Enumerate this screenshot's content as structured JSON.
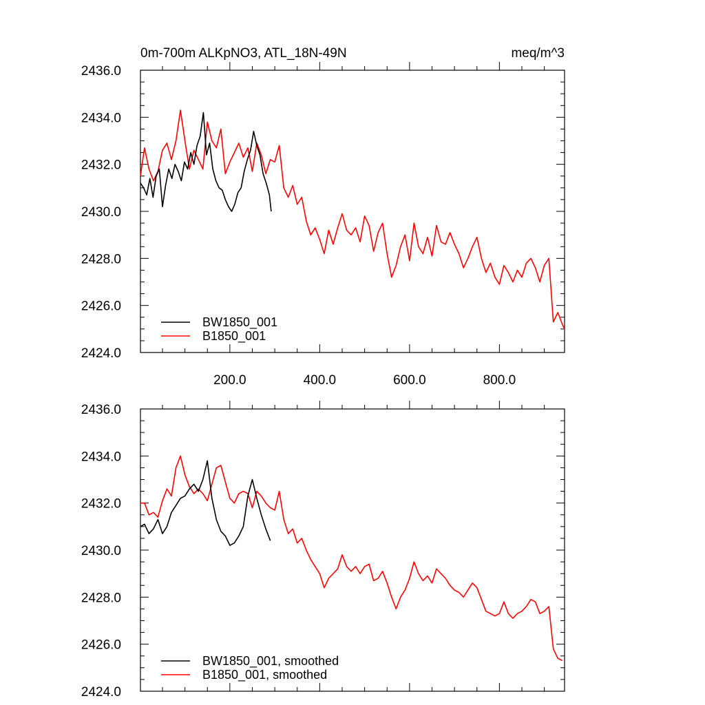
{
  "figure": {
    "title_left": "0m-700m ALKpNO3, ATL_18N-49N",
    "title_right": "meq/m^3"
  },
  "chart_data": [
    {
      "type": "line",
      "title": "0m-700m ALKpNO3, ATL_18N-49N",
      "units": "meq/m^3",
      "xlabel": "",
      "ylabel": "",
      "xlim": [
        1,
        945
      ],
      "ylim": [
        2424.0,
        2436.0
      ],
      "yticks": [
        2424.0,
        2426.0,
        2428.0,
        2430.0,
        2432.0,
        2434.0,
        2436.0
      ],
      "ytick_labels": [
        "2424.0",
        "2426.0",
        "2428.0",
        "2430.0",
        "2432.0",
        "2434.0",
        "2436.0"
      ],
      "xticks": [
        200,
        400,
        600,
        800
      ],
      "xtick_labels": [
        "200.0",
        "400.0",
        "600.0",
        "800.0"
      ],
      "grid": false,
      "legend_position": "bottom-left",
      "series": [
        {
          "name": "BW1850_001",
          "color": "#000000",
          "x": [
            1,
            8,
            15,
            22,
            29,
            36,
            43,
            50,
            57,
            64,
            71,
            78,
            85,
            92,
            99,
            106,
            113,
            120,
            127,
            134,
            141,
            148,
            155,
            162,
            169,
            176,
            183,
            190,
            197,
            204,
            211,
            218,
            225,
            232,
            239,
            246,
            253,
            260,
            267,
            274,
            281,
            288,
            292
          ],
          "y": [
            2431.2,
            2431.0,
            2430.7,
            2431.4,
            2430.6,
            2431.5,
            2431.8,
            2430.2,
            2431.1,
            2431.8,
            2431.4,
            2432.0,
            2431.7,
            2431.3,
            2432.1,
            2431.8,
            2432.5,
            2432.0,
            2432.8,
            2433.2,
            2434.2,
            2432.4,
            2432.9,
            2431.8,
            2431.3,
            2431.0,
            2430.9,
            2430.5,
            2430.2,
            2430.0,
            2430.3,
            2430.8,
            2431.0,
            2431.7,
            2432.2,
            2432.6,
            2433.4,
            2432.8,
            2432.4,
            2431.6,
            2431.2,
            2430.7,
            2430.0
          ]
        },
        {
          "name": "B1850_001",
          "color": "#ff0000",
          "x": [
            1,
            10,
            20,
            30,
            40,
            50,
            60,
            70,
            80,
            90,
            100,
            110,
            120,
            130,
            140,
            150,
            160,
            170,
            180,
            190,
            200,
            210,
            220,
            230,
            240,
            250,
            260,
            270,
            280,
            290,
            300,
            310,
            320,
            330,
            340,
            350,
            360,
            370,
            380,
            390,
            400,
            410,
            420,
            430,
            440,
            450,
            460,
            470,
            480,
            490,
            500,
            510,
            520,
            530,
            540,
            550,
            560,
            570,
            580,
            590,
            600,
            610,
            620,
            630,
            640,
            650,
            660,
            670,
            680,
            690,
            700,
            710,
            720,
            730,
            740,
            750,
            760,
            770,
            780,
            790,
            800,
            810,
            820,
            830,
            840,
            850,
            860,
            870,
            880,
            890,
            900,
            910,
            920,
            930,
            940,
            945
          ],
          "y": [
            2431.5,
            2432.7,
            2431.8,
            2431.3,
            2431.7,
            2432.6,
            2432.9,
            2432.2,
            2433.0,
            2434.3,
            2433.0,
            2431.8,
            2432.6,
            2432.2,
            2431.8,
            2433.8,
            2433.0,
            2432.7,
            2433.5,
            2431.6,
            2432.1,
            2432.5,
            2432.9,
            2432.3,
            2432.7,
            2431.7,
            2432.9,
            2432.4,
            2431.6,
            2432.2,
            2432.1,
            2432.8,
            2431.0,
            2430.6,
            2431.1,
            2430.3,
            2430.6,
            2429.6,
            2429.0,
            2429.3,
            2428.8,
            2428.2,
            2429.2,
            2428.6,
            2429.3,
            2429.9,
            2429.2,
            2429.0,
            2429.3,
            2428.7,
            2429.8,
            2429.4,
            2428.3,
            2429.1,
            2429.5,
            2428.2,
            2427.2,
            2427.7,
            2428.5,
            2429.0,
            2427.9,
            2429.5,
            2428.5,
            2428.2,
            2428.9,
            2428.1,
            2429.4,
            2428.7,
            2428.6,
            2429.1,
            2428.6,
            2428.2,
            2427.6,
            2428.0,
            2428.5,
            2428.9,
            2428.0,
            2427.4,
            2427.8,
            2427.2,
            2426.9,
            2427.7,
            2427.4,
            2427.0,
            2427.5,
            2427.2,
            2427.8,
            2428.0,
            2427.6,
            2427.0,
            2427.7,
            2428.0,
            2425.3,
            2425.7,
            2425.2,
            2425.0
          ]
        }
      ]
    },
    {
      "type": "line",
      "title": "",
      "xlabel": "",
      "ylabel": "",
      "xlim": [
        1,
        945
      ],
      "ylim": [
        2424.0,
        2436.0
      ],
      "yticks": [
        2424.0,
        2426.0,
        2428.0,
        2430.0,
        2432.0,
        2434.0,
        2436.0
      ],
      "ytick_labels": [
        "2424.0",
        "2426.0",
        "2428.0",
        "2430.0",
        "2432.0",
        "2434.0",
        "2436.0"
      ],
      "xticks": [
        200,
        400,
        600,
        800
      ],
      "xtick_labels": [],
      "grid": false,
      "legend_position": "bottom-left",
      "series": [
        {
          "name": "BW1850_001, smoothed",
          "color": "#000000",
          "x": [
            1,
            10,
            20,
            30,
            40,
            50,
            60,
            70,
            80,
            90,
            100,
            110,
            120,
            130,
            140,
            150,
            160,
            170,
            180,
            190,
            200,
            210,
            220,
            230,
            240,
            250,
            260,
            270,
            280,
            290
          ],
          "y": [
            2431.0,
            2431.1,
            2430.7,
            2430.9,
            2431.3,
            2430.7,
            2431.0,
            2431.6,
            2431.9,
            2432.2,
            2432.3,
            2432.6,
            2432.8,
            2432.5,
            2433.0,
            2433.8,
            2432.2,
            2431.3,
            2430.8,
            2430.6,
            2430.2,
            2430.3,
            2430.6,
            2431.0,
            2432.3,
            2433.0,
            2432.2,
            2431.5,
            2430.9,
            2430.4
          ]
        },
        {
          "name": "B1850_001, smoothed",
          "color": "#ff0000",
          "x": [
            1,
            10,
            20,
            30,
            40,
            50,
            60,
            70,
            80,
            90,
            100,
            110,
            120,
            130,
            140,
            150,
            160,
            170,
            180,
            190,
            200,
            210,
            220,
            230,
            240,
            250,
            260,
            270,
            280,
            290,
            300,
            310,
            320,
            330,
            340,
            350,
            360,
            370,
            380,
            390,
            400,
            410,
            420,
            430,
            440,
            450,
            460,
            470,
            480,
            490,
            500,
            510,
            520,
            530,
            540,
            550,
            560,
            570,
            580,
            590,
            600,
            610,
            620,
            630,
            640,
            650,
            660,
            670,
            680,
            690,
            700,
            710,
            720,
            730,
            740,
            750,
            760,
            770,
            780,
            790,
            800,
            810,
            820,
            830,
            840,
            850,
            860,
            870,
            880,
            890,
            900,
            910,
            920,
            930,
            940
          ],
          "y": [
            2432.0,
            2432.0,
            2431.5,
            2431.6,
            2431.4,
            2432.1,
            2432.6,
            2432.3,
            2433.5,
            2434.0,
            2433.2,
            2432.7,
            2432.4,
            2432.6,
            2432.4,
            2432.1,
            2432.8,
            2433.5,
            2433.6,
            2432.9,
            2432.2,
            2432.0,
            2432.4,
            2432.5,
            2432.4,
            2431.8,
            2432.5,
            2432.3,
            2432.0,
            2431.8,
            2431.7,
            2432.5,
            2431.3,
            2430.7,
            2430.9,
            2430.3,
            2430.5,
            2430.0,
            2429.6,
            2429.3,
            2429.0,
            2428.4,
            2428.8,
            2429.0,
            2429.2,
            2429.8,
            2429.3,
            2429.1,
            2429.3,
            2429.0,
            2429.3,
            2429.4,
            2428.7,
            2428.8,
            2429.1,
            2428.6,
            2428.0,
            2427.5,
            2428.0,
            2428.3,
            2428.8,
            2429.5,
            2429.0,
            2428.7,
            2428.9,
            2428.6,
            2429.2,
            2429.0,
            2428.8,
            2428.5,
            2428.3,
            2428.2,
            2428.0,
            2428.3,
            2428.6,
            2428.4,
            2427.9,
            2427.4,
            2427.3,
            2427.2,
            2427.3,
            2427.8,
            2427.3,
            2427.1,
            2427.3,
            2427.4,
            2427.6,
            2427.9,
            2427.8,
            2427.3,
            2427.4,
            2427.6,
            2425.8,
            2425.4,
            2425.3
          ]
        }
      ]
    }
  ]
}
